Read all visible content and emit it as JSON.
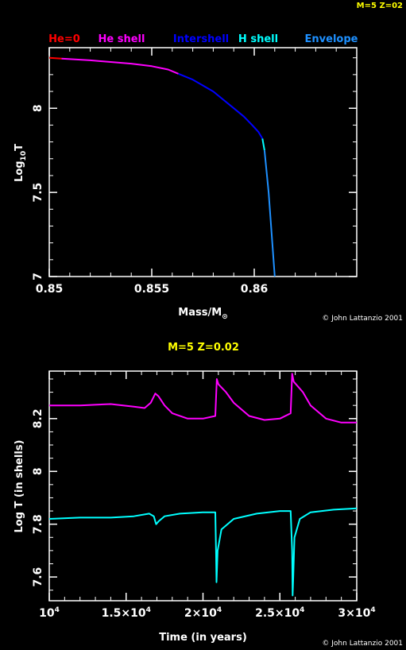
{
  "corner_label": "M=5 Z=02",
  "colors": {
    "background": "#000000",
    "axes": "#ffffff",
    "title": "#ffff00",
    "he0": "#ff0000",
    "he_shell": "#ff00ff",
    "intershell": "#0000ff",
    "h_shell": "#00ffff",
    "envelope": "#1e90ff"
  },
  "chart_data": [
    {
      "type": "line",
      "title": "",
      "xlabel": "Mass/M",
      "xlabel_sub": "⊙",
      "ylabel": "Log",
      "ylabel_sub": "10",
      "ylabel_end": "T",
      "xlim": [
        0.85,
        0.865
      ],
      "ylim": [
        7,
        8.36
      ],
      "xticks": [
        0.85,
        0.855,
        0.86
      ],
      "xtick_labels": [
        "0.85",
        "0.855",
        "0.86"
      ],
      "yticks": [
        7,
        7.5,
        8
      ],
      "ytick_labels": [
        "7",
        "7.5",
        "8"
      ],
      "credit": "© John Lattanzio 2001",
      "legend": [
        "He=0",
        "He shell",
        "Intershell",
        "H shell",
        "Envelope"
      ],
      "series": [
        {
          "name": "He=0",
          "color": "#ff0000",
          "x": [
            0.85,
            0.8506
          ],
          "y": [
            8.3,
            8.295
          ]
        },
        {
          "name": "He shell",
          "color": "#ff00ff",
          "x": [
            0.8506,
            0.852,
            0.854,
            0.855,
            0.8558,
            0.8563
          ],
          "y": [
            8.295,
            8.285,
            8.265,
            8.25,
            8.23,
            8.205
          ]
        },
        {
          "name": "Intershell",
          "color": "#0000ff",
          "x": [
            0.8563,
            0.857,
            0.858,
            0.859,
            0.8595,
            0.8599,
            0.8602,
            0.8604
          ],
          "y": [
            8.205,
            8.17,
            8.1,
            8.0,
            7.95,
            7.9,
            7.86,
            7.82
          ]
        },
        {
          "name": "H shell",
          "color": "#00ffff",
          "x": [
            0.8604,
            0.8605
          ],
          "y": [
            7.82,
            7.75
          ]
        },
        {
          "name": "Envelope",
          "color": "#1e90ff",
          "x": [
            0.8605,
            0.8607,
            0.861
          ],
          "y": [
            7.75,
            7.5,
            7.0
          ]
        }
      ]
    },
    {
      "type": "line",
      "title": "M=5 Z=0.02",
      "xlabel": "Time (in years)",
      "ylabel": "Log T (in shells)",
      "xlim": [
        10000,
        30000
      ],
      "ylim": [
        7.51,
        8.38
      ],
      "xticks": [
        10000,
        15000,
        20000,
        25000,
        30000
      ],
      "xtick_labels": [
        "10",
        "1.5×10",
        "2×10",
        "2.5×10",
        "3×10"
      ],
      "xtick_exp": "4",
      "yticks": [
        7.6,
        7.8,
        8.0,
        8.2
      ],
      "ytick_labels": [
        "7.6",
        "7.8",
        "8",
        "8.2"
      ],
      "credit": "© John Lattanzio 2001",
      "series": [
        {
          "name": "He shell",
          "color": "#ff00ff",
          "x": [
            10000,
            12000,
            14000,
            15500,
            16200,
            16600,
            16900,
            17100,
            17500,
            18000,
            19000,
            20000,
            20800,
            20900,
            21000,
            21500,
            22000,
            23000,
            24000,
            25000,
            25700,
            25800,
            25900,
            26500,
            27000,
            28000,
            29000,
            30000
          ],
          "y": [
            8.25,
            8.25,
            8.255,
            8.245,
            8.24,
            8.26,
            8.295,
            8.285,
            8.25,
            8.22,
            8.2,
            8.2,
            8.21,
            8.35,
            8.33,
            8.3,
            8.26,
            8.21,
            8.195,
            8.2,
            8.22,
            8.37,
            8.34,
            8.3,
            8.25,
            8.2,
            8.185,
            8.185
          ]
        },
        {
          "name": "H shell",
          "color": "#00ffff",
          "x": [
            10000,
            12000,
            14000,
            15500,
            16500,
            16800,
            16950,
            17100,
            17500,
            18500,
            20000,
            20800,
            20850,
            20880,
            20950,
            21200,
            22000,
            23500,
            25000,
            25700,
            25800,
            25830,
            25870,
            25950,
            26300,
            27000,
            28500,
            30000
          ],
          "y": [
            7.82,
            7.825,
            7.825,
            7.83,
            7.84,
            7.83,
            7.8,
            7.81,
            7.83,
            7.84,
            7.845,
            7.845,
            7.7,
            7.58,
            7.7,
            7.78,
            7.82,
            7.84,
            7.85,
            7.85,
            7.7,
            7.53,
            7.6,
            7.75,
            7.82,
            7.845,
            7.855,
            7.86
          ]
        }
      ]
    }
  ]
}
